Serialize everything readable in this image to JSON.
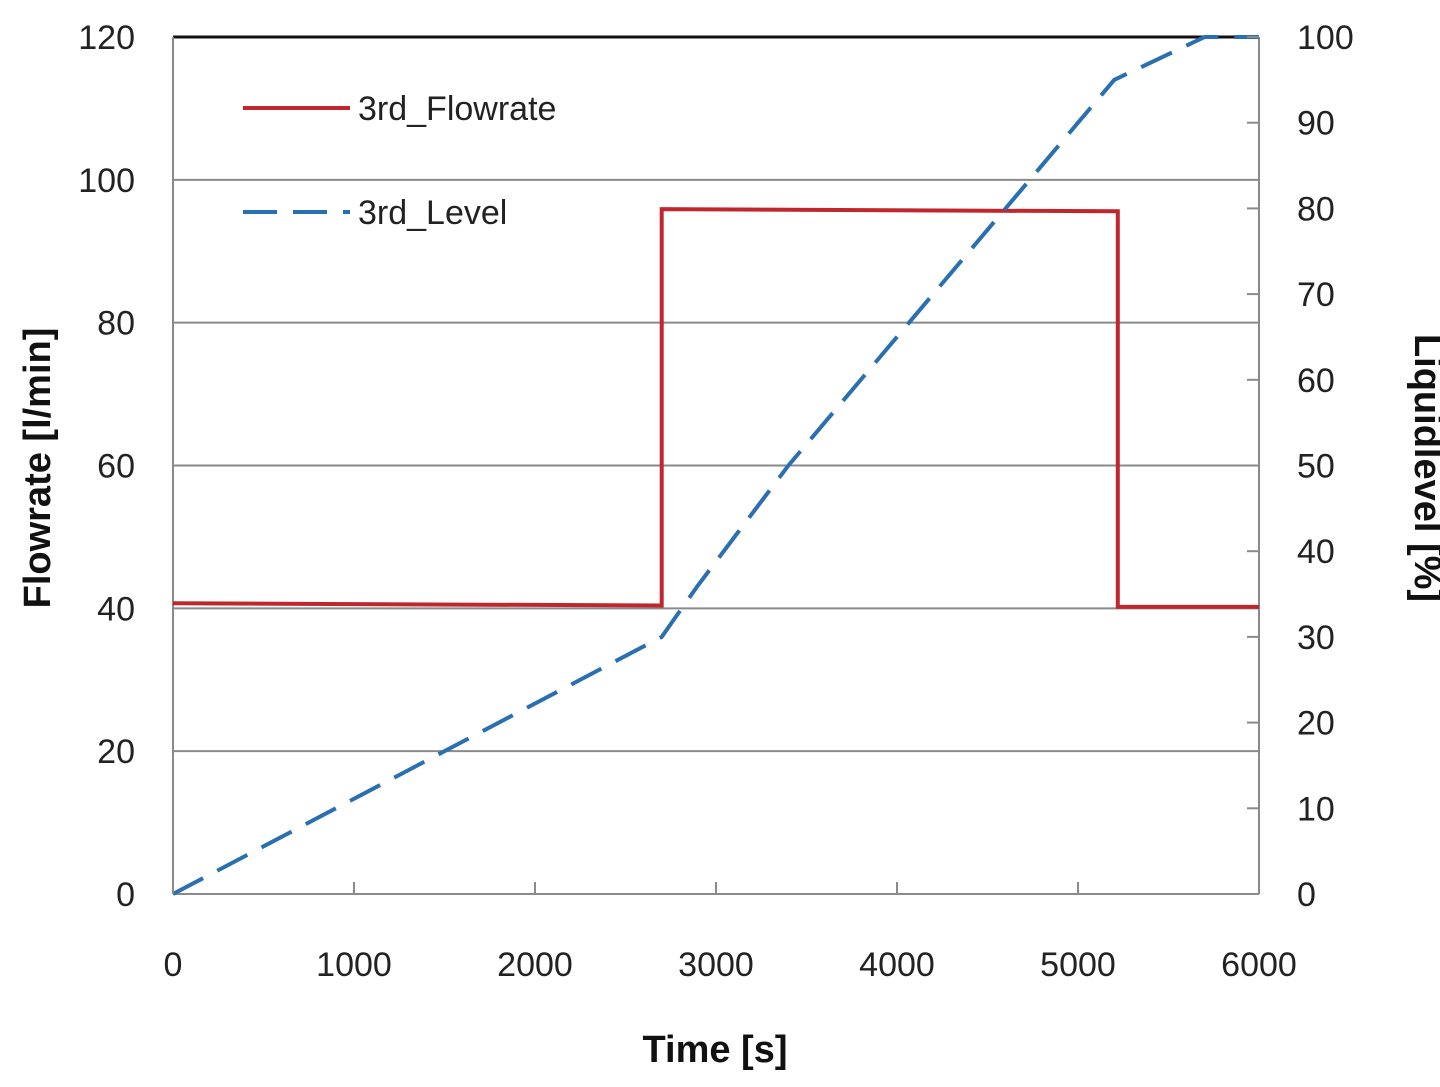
{
  "chart_data": {
    "type": "line",
    "title": "",
    "xlabel": "Time [s]",
    "ylabel_left": "Flowrate [l/min]",
    "ylabel_right": "Liquidlevel [%]",
    "xlim": [
      0,
      6000
    ],
    "xticks": [
      0,
      1000,
      2000,
      3000,
      4000,
      5000,
      6000
    ],
    "ylim_left": [
      0,
      120
    ],
    "yticks_left": [
      0,
      20,
      40,
      60,
      80,
      100,
      120
    ],
    "ylim_right": [
      0,
      100
    ],
    "yticks_right": [
      0,
      10,
      20,
      30,
      40,
      50,
      60,
      70,
      80,
      90,
      100
    ],
    "grid": "horizontal",
    "legend_placement": "top-left",
    "series": [
      {
        "name": "3rd_Flowrate",
        "axis": "left",
        "style": "solid",
        "color": "#c0272d",
        "x": [
          0,
          2700,
          2700,
          5220,
          5220,
          6000
        ],
        "y": [
          40.7,
          40.4,
          95.9,
          95.6,
          40.2,
          40.2
        ]
      },
      {
        "name": "3rd_Level",
        "axis": "right",
        "style": "dashed",
        "color": "#2a6fb0",
        "x": [
          0,
          2700,
          2900,
          3400,
          4000,
          4600,
          5000,
          5200,
          5700,
          6000
        ],
        "y": [
          0,
          30,
          36,
          50,
          65,
          80,
          90,
          95,
          100,
          100
        ]
      }
    ]
  }
}
